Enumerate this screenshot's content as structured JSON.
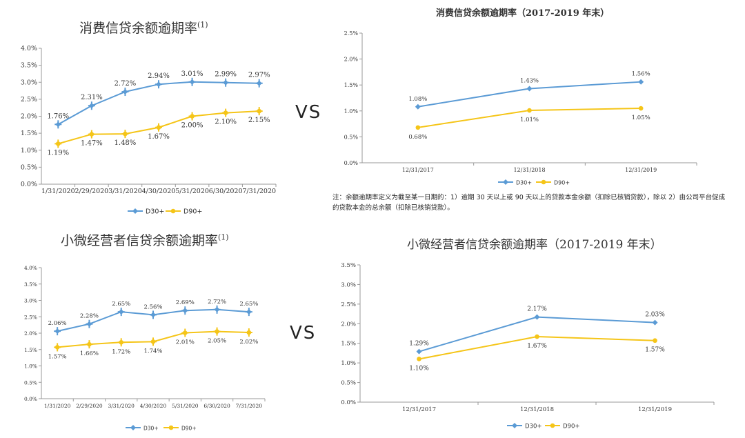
{
  "vs_label": "VS",
  "note": "注：余额逾期率定义为截至某一日期的：1）逾期 30 天以上或 90 天以上的贷款本金余额（扣除已核销贷款），除以 2）由公司平台促成的贷款本金的总余额（扣除已核销贷款）。",
  "chart_data": [
    {
      "type": "line",
      "title": "消费信贷余额逾期率",
      "title_sup": "(1)",
      "categories": [
        "1/31/2020",
        "2/29/2020",
        "3/31/2020",
        "4/30/2020",
        "5/31/2020",
        "6/30/2020",
        "7/31/2020"
      ],
      "series": [
        {
          "name": "D30+",
          "values": [
            1.76,
            2.31,
            2.72,
            2.94,
            3.01,
            2.99,
            2.97
          ],
          "labels": [
            "1.76%",
            "2.31%",
            "2.72%",
            "2.94%",
            "3.01%",
            "2.99%",
            "2.97%"
          ],
          "label_pos": "above",
          "color": "#5b9bd5"
        },
        {
          "name": "D90+",
          "values": [
            1.19,
            1.47,
            1.48,
            1.67,
            2.0,
            2.1,
            2.15
          ],
          "labels": [
            "1.19%",
            "1.47%",
            "1.48%",
            "1.67%",
            "2.00%",
            "2.10%",
            "2.15%"
          ],
          "label_pos": "below",
          "color": "#f5c518"
        }
      ],
      "yticks": [
        "0.0%",
        "0.5%",
        "1.0%",
        "1.5%",
        "2.0%",
        "2.5%",
        "3.0%",
        "3.5%",
        "4.0%"
      ],
      "ylim": [
        0,
        4.0
      ],
      "legend": "bottom"
    },
    {
      "type": "line",
      "title": "消费信贷余额逾期率（2017-2019 年末）",
      "categories": [
        "12/31/2017",
        "12/31/2018",
        "12/31/2019"
      ],
      "series": [
        {
          "name": "D30+",
          "values": [
            1.08,
            1.43,
            1.56
          ],
          "labels": [
            "1.08%",
            "1.43%",
            "1.56%"
          ],
          "label_pos": "above",
          "color": "#5b9bd5"
        },
        {
          "name": "D90+",
          "values": [
            0.68,
            1.01,
            1.05
          ],
          "labels": [
            "0.68%",
            "1.01%",
            "1.05%"
          ],
          "label_pos": "below",
          "color": "#f5c518"
        }
      ],
      "yticks": [
        "0.0%",
        "0.5%",
        "1.0%",
        "1.5%",
        "2.0%",
        "2.5%"
      ],
      "ylim": [
        0,
        2.5
      ],
      "legend": "bottom"
    },
    {
      "type": "line",
      "title": "小微经营者信贷余额逾期率",
      "title_sup": "(1)",
      "categories": [
        "1/31/2020",
        "2/29/2020",
        "3/31/2020",
        "4/30/2020",
        "5/31/2020",
        "6/30/2020",
        "7/31/2020"
      ],
      "series": [
        {
          "name": "D30+",
          "values": [
            2.06,
            2.28,
            2.65,
            2.56,
            2.69,
            2.72,
            2.65
          ],
          "labels": [
            "2.06%",
            "2.28%",
            "2.65%",
            "2.56%",
            "2.69%",
            "2.72%",
            "2.65%"
          ],
          "label_pos": "above",
          "color": "#5b9bd5"
        },
        {
          "name": "D90+",
          "values": [
            1.57,
            1.66,
            1.72,
            1.74,
            2.01,
            2.05,
            2.02
          ],
          "labels": [
            "1.57%",
            "1.66%",
            "1.72%",
            "1.74%",
            "2.01%",
            "2.05%",
            "2.02%"
          ],
          "label_pos": "below",
          "color": "#f5c518"
        }
      ],
      "yticks": [
        "0.0%",
        "0.5%",
        "1.0%",
        "1.5%",
        "2.0%",
        "2.5%",
        "3.0%",
        "3.5%",
        "4.0%"
      ],
      "ylim": [
        0,
        4.0
      ],
      "legend": "bottom"
    },
    {
      "type": "line",
      "title": "小微经营者信贷余额逾期率（2017-2019 年末）",
      "categories": [
        "12/31/2017",
        "12/31/2018",
        "12/31/2019"
      ],
      "series": [
        {
          "name": "D30+",
          "values": [
            1.29,
            2.17,
            2.03
          ],
          "labels": [
            "1.29%",
            "2.17%",
            "2.03%"
          ],
          "label_pos": "above",
          "color": "#5b9bd5"
        },
        {
          "name": "D90+",
          "values": [
            1.1,
            1.67,
            1.57
          ],
          "labels": [
            "1.10%",
            "1.67%",
            "1.57%"
          ],
          "label_pos": "below",
          "color": "#f5c518"
        }
      ],
      "yticks": [
        "0.0%",
        "0.5%",
        "1.0%",
        "1.5%",
        "2.0%",
        "2.5%",
        "3.0%",
        "3.5%"
      ],
      "ylim": [
        0,
        3.5
      ],
      "legend": "bottom"
    }
  ]
}
